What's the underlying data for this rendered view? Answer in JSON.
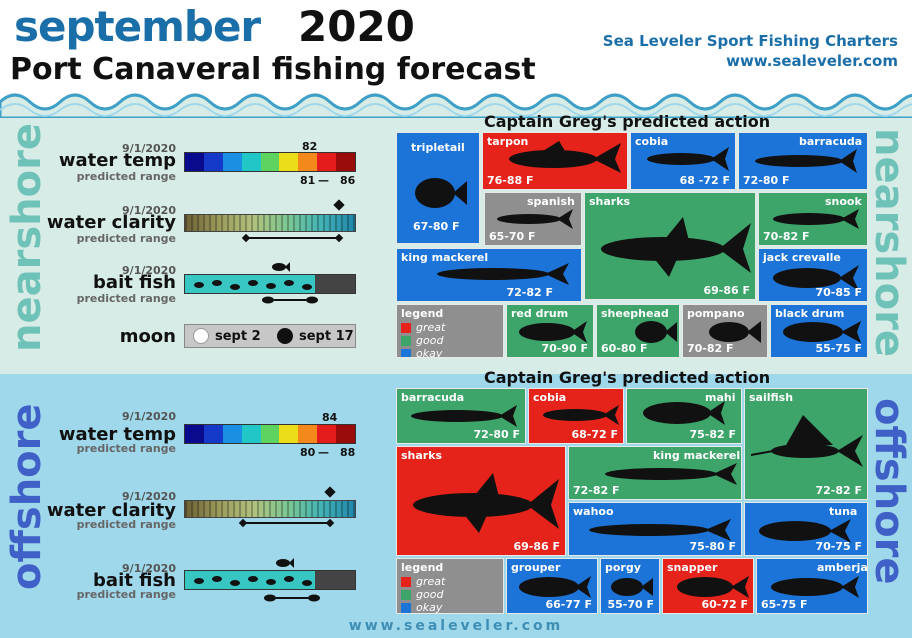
{
  "header": {
    "month": "september",
    "year": "2020",
    "title": "Port Canaveral fishing forecast",
    "company": "Sea Leveler Sport Fishing Charters",
    "url": "www.sealeveler.com"
  },
  "colors": {
    "great": "#e5231b",
    "good": "#3ea56a",
    "okay": "#1d74d8",
    "grey": "#8f8f8f",
    "accent": "#1b6fa8"
  },
  "nearshore": {
    "side_label": "nearshore",
    "heading": "Captain Greg's predicted action",
    "water_temp": {
      "date": "9/1/2020",
      "label": "water temp",
      "sub": "predicted range",
      "current": "82",
      "low": "81",
      "dash": "—",
      "high": "86"
    },
    "water_clarity": {
      "date": "9/1/2020",
      "label": "water clarity",
      "sub": "predicted range"
    },
    "bait_fish": {
      "date": "9/1/2020",
      "label": "bait fish",
      "sub": "predicted range"
    },
    "moon": {
      "label": "moon",
      "new": "sept 2",
      "full": "sept 17"
    },
    "fish": [
      {
        "name": "tripletail",
        "range": "67-80 F",
        "rating": "okay"
      },
      {
        "name": "tarpon",
        "range": "76-88 F",
        "rating": "great"
      },
      {
        "name": "cobia",
        "range": "68 -72 F",
        "rating": "okay"
      },
      {
        "name": "barracuda",
        "range": "72-80 F",
        "rating": "okay"
      },
      {
        "name": "spanish",
        "range": "65-70 F",
        "rating": "grey"
      },
      {
        "name": "sharks",
        "range": "69-86 F",
        "rating": "good"
      },
      {
        "name": "snook",
        "range": "70-82 F",
        "rating": "good"
      },
      {
        "name": "king mackerel",
        "range": "72-82 F",
        "rating": "okay"
      },
      {
        "name": "jack crevalle",
        "range": "70-85 F",
        "rating": "okay"
      },
      {
        "name": "red drum",
        "range": "70-90 F",
        "rating": "good"
      },
      {
        "name": "sheephead",
        "range": "60-80 F",
        "rating": "good"
      },
      {
        "name": "pompano",
        "range": "70-82 F",
        "rating": "grey"
      },
      {
        "name": "black drum",
        "range": "55-75 F",
        "rating": "okay"
      }
    ],
    "legend": {
      "title": "legend",
      "great": "great",
      "good": "good",
      "okay": "okay"
    }
  },
  "offshore": {
    "side_label": "offshore",
    "heading": "Captain Greg's predicted action",
    "water_temp": {
      "date": "9/1/2020",
      "label": "water temp",
      "sub": "predicted range",
      "current": "84",
      "low": "80",
      "dash": "—",
      "high": "88"
    },
    "water_clarity": {
      "date": "9/1/2020",
      "label": "water clarity",
      "sub": "predicted range"
    },
    "bait_fish": {
      "date": "9/1/2020",
      "label": "bait fish",
      "sub": "predicted range"
    },
    "fish": [
      {
        "name": "barracuda",
        "range": "72-80 F",
        "rating": "good"
      },
      {
        "name": "cobia",
        "range": "68-72 F",
        "rating": "great"
      },
      {
        "name": "mahi",
        "range": "75-82 F",
        "rating": "good"
      },
      {
        "name": "sailfish",
        "range": "72-82 F",
        "rating": "good"
      },
      {
        "name": "sharks",
        "range": "69-86 F",
        "rating": "great"
      },
      {
        "name": "king mackerel",
        "range": "72-82 F",
        "rating": "good"
      },
      {
        "name": "wahoo",
        "range": "75-80 F",
        "rating": "okay"
      },
      {
        "name": "tuna",
        "range": "70-75 F",
        "rating": "okay"
      },
      {
        "name": "grouper",
        "range": "66-77 F",
        "rating": "okay"
      },
      {
        "name": "porgy",
        "range": "55-70 F",
        "rating": "okay"
      },
      {
        "name": "snapper",
        "range": "60-72 F",
        "rating": "great"
      },
      {
        "name": "amberjack",
        "range": "65-75 F",
        "rating": "okay"
      }
    ],
    "legend": {
      "title": "legend",
      "great": "great",
      "good": "good",
      "okay": "okay"
    }
  },
  "footer": {
    "url": "www.sealeveler.com"
  }
}
